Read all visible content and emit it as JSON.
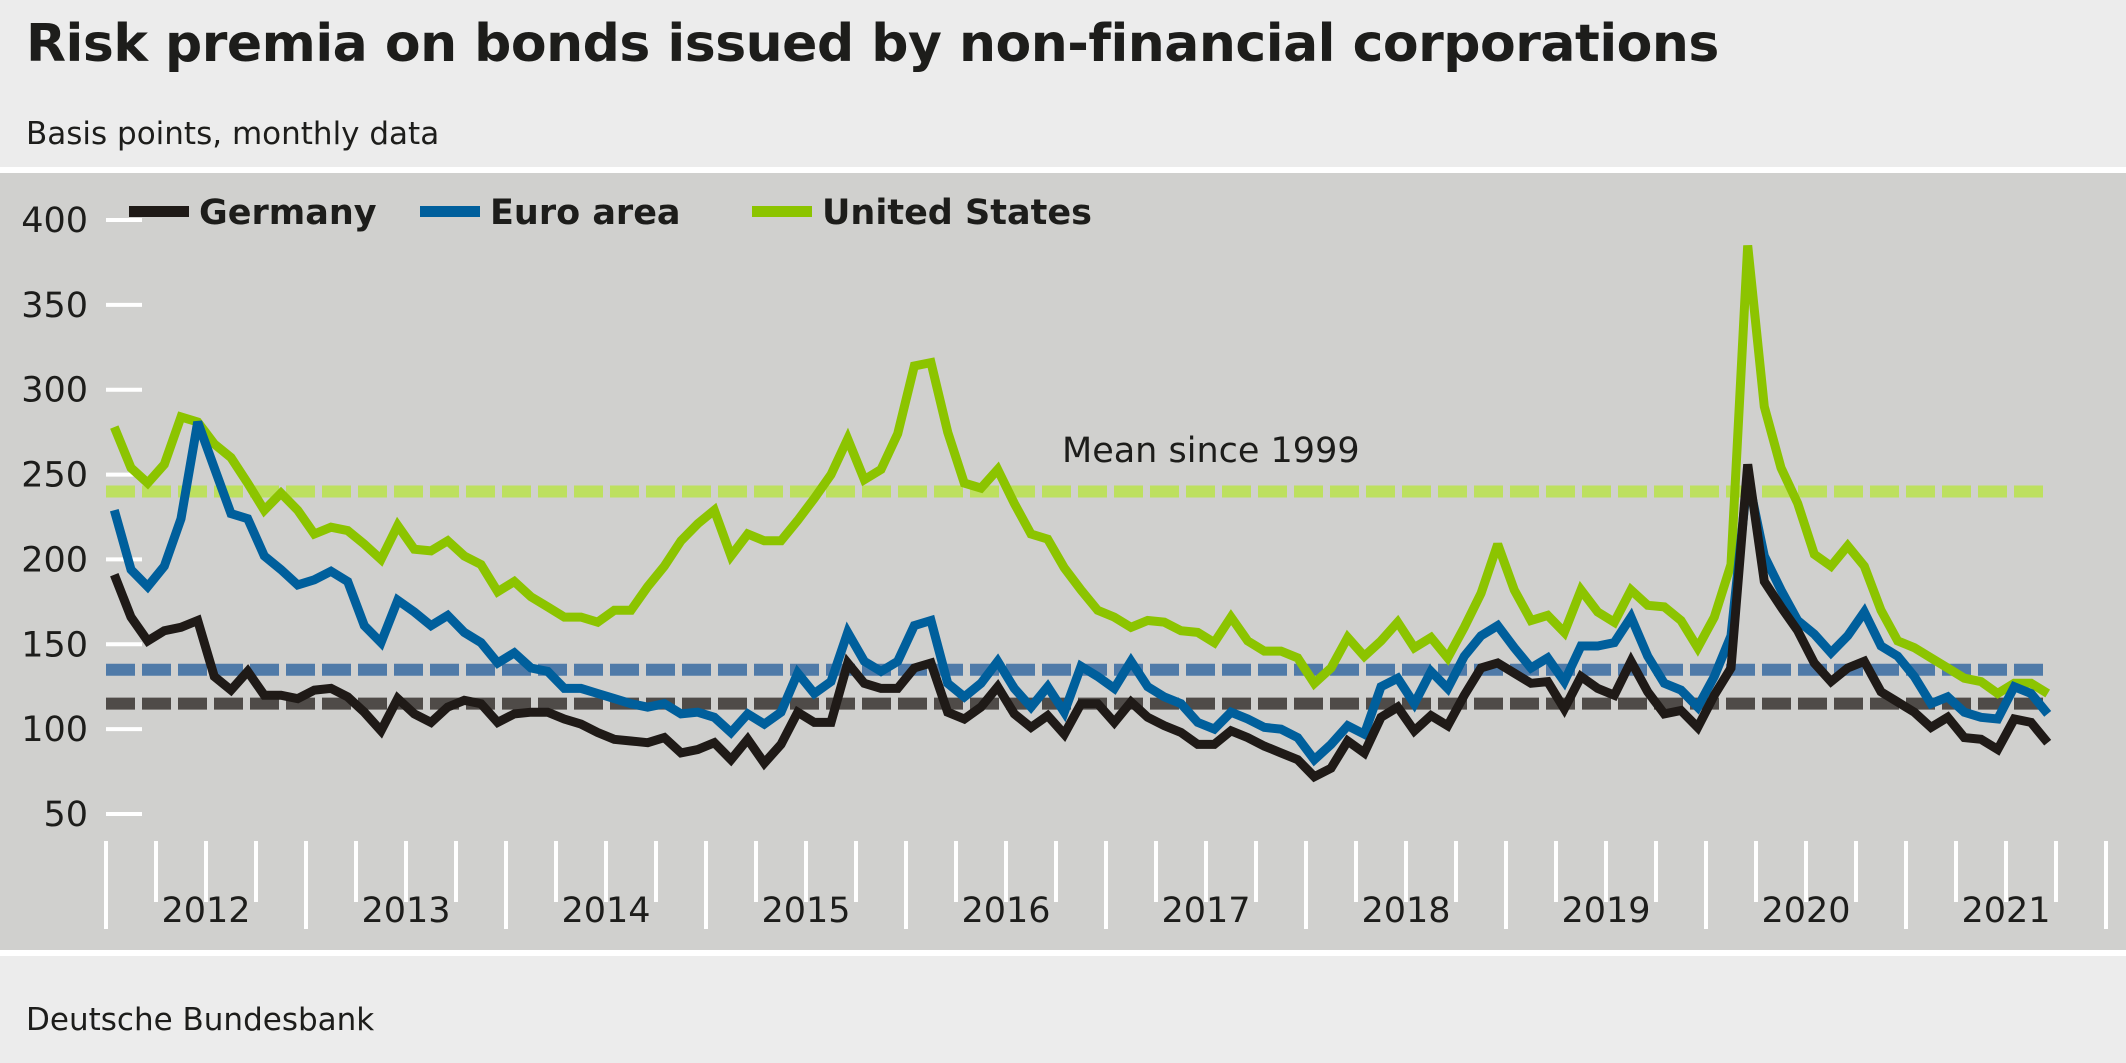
{
  "header": {
    "title": "Risk premia on bonds issued by non-financial corporations",
    "subtitle": "Basis points, monthly data"
  },
  "footer": {
    "source": "Deutsche Bundesbank"
  },
  "chart_data": {
    "type": "line",
    "title": "Risk premia on bonds issued by non-financial corporations",
    "ylabel": "Basis points, monthly data",
    "x_start": "2012-01",
    "x_end": "2021-09",
    "frequency": "monthly",
    "ylim": [
      50,
      400
    ],
    "yticks": [
      50,
      100,
      150,
      200,
      250,
      300,
      350,
      400
    ],
    "xtick_labels": [
      "2012",
      "2013",
      "2014",
      "2015",
      "2016",
      "2017",
      "2018",
      "2019",
      "2020",
      "2021"
    ],
    "legend_position": "top-left",
    "grid": false,
    "annotation": "Mean since 1999",
    "series": [
      {
        "name": "Germany",
        "color": "#1f1a17",
        "mean_since_1999": 115,
        "mean_color": "#4f4b48",
        "values": [
          191,
          166,
          152,
          158,
          160,
          164,
          131,
          123,
          134,
          120,
          120,
          118,
          123,
          124,
          119,
          110,
          99,
          118,
          109,
          104,
          113,
          117,
          115,
          104,
          109,
          110,
          110,
          106,
          103,
          98,
          94,
          93,
          92,
          95,
          86,
          88,
          92,
          82,
          94,
          80,
          91,
          110,
          104,
          104,
          139,
          127,
          124,
          124,
          136,
          139,
          110,
          106,
          113,
          125,
          109,
          101,
          108,
          97,
          115,
          115,
          104,
          116,
          107,
          102,
          98,
          91,
          91,
          99,
          95,
          90,
          86,
          82,
          72,
          77,
          93,
          86,
          107,
          113,
          99,
          108,
          102,
          120,
          136,
          139,
          133,
          127,
          128,
          112,
          131,
          124,
          120,
          140,
          122,
          109,
          111,
          101,
          120,
          136,
          256,
          187,
          172,
          158,
          139,
          128,
          136,
          140,
          122,
          116,
          110,
          101,
          107,
          95,
          94,
          88,
          106,
          104,
          92
        ]
      },
      {
        "name": "Euro area",
        "color": "#005f9c",
        "mean_since_1999": 135,
        "mean_color": "#4f7aa8",
        "values": [
          229,
          194,
          184,
          196,
          224,
          281,
          254,
          227,
          224,
          202,
          194,
          185,
          188,
          193,
          187,
          161,
          151,
          176,
          169,
          161,
          167,
          157,
          151,
          139,
          145,
          136,
          134,
          124,
          124,
          121,
          118,
          115,
          113,
          115,
          109,
          110,
          107,
          98,
          109,
          103,
          110,
          133,
          121,
          128,
          157,
          140,
          134,
          140,
          161,
          164,
          127,
          119,
          127,
          140,
          124,
          113,
          125,
          110,
          137,
          131,
          124,
          140,
          125,
          119,
          115,
          104,
          100,
          110,
          106,
          101,
          100,
          95,
          82,
          91,
          102,
          97,
          125,
          130,
          115,
          134,
          124,
          143,
          155,
          161,
          148,
          136,
          142,
          128,
          149,
          149,
          151,
          166,
          143,
          127,
          123,
          113,
          131,
          155,
          249,
          202,
          182,
          164,
          156,
          145,
          155,
          169,
          149,
          143,
          131,
          115,
          119,
          110,
          107,
          106,
          125,
          121,
          109
        ]
      },
      {
        "name": "United States",
        "color": "#8cc400",
        "mean_since_1999": 240,
        "mean_color": "#bde05f",
        "values": [
          278,
          254,
          245,
          256,
          284,
          281,
          268,
          260,
          245,
          229,
          239,
          229,
          215,
          219,
          217,
          209,
          200,
          220,
          206,
          205,
          211,
          202,
          197,
          181,
          187,
          178,
          172,
          166,
          166,
          163,
          170,
          170,
          184,
          196,
          211,
          221,
          229,
          202,
          215,
          211,
          211,
          223,
          236,
          250,
          271,
          247,
          253,
          274,
          314,
          316,
          275,
          245,
          242,
          253,
          233,
          215,
          212,
          195,
          182,
          170,
          166,
          160,
          164,
          163,
          158,
          157,
          151,
          166,
          152,
          146,
          146,
          142,
          127,
          136,
          154,
          143,
          152,
          163,
          148,
          154,
          142,
          160,
          180,
          209,
          182,
          164,
          167,
          157,
          182,
          169,
          163,
          182,
          173,
          172,
          164,
          148,
          166,
          197,
          385,
          290,
          254,
          233,
          203,
          196,
          208,
          196,
          170,
          152,
          148,
          142,
          136,
          130,
          128,
          121,
          127,
          127,
          121
        ]
      }
    ]
  }
}
